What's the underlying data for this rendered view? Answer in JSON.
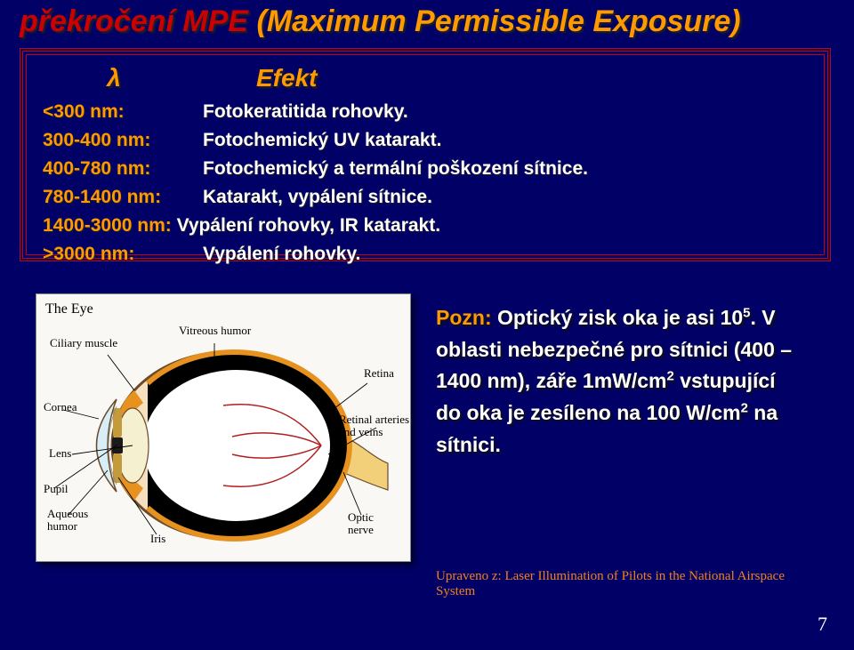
{
  "title": {
    "red_part": "překročení MPE",
    "orange_part": "(Maximum Permissible Exposure)"
  },
  "headers": {
    "lambda": "λ",
    "effect": "Efekt"
  },
  "rows": [
    {
      "wl": "<300 nm:",
      "eff": "Fotokeratitida rohovky."
    },
    {
      "wl": "300-400 nm:",
      "eff": "Fotochemický UV katarakt."
    },
    {
      "wl": "400-780 nm:",
      "eff": "Fotochemický a termální poškození sítnice."
    },
    {
      "wl": "780-1400 nm:",
      "eff": "Katarakt, vypálení sítnice."
    },
    {
      "wl": "1400-3000 nm:",
      "eff": "Vypálení rohovky, IR katarakt.",
      "merged": true
    },
    {
      "wl": ">3000 nm:",
      "eff": "Vypálení rohovky."
    }
  ],
  "eye": {
    "title": "The Eye",
    "labels": {
      "vitreous": "Vitreous humor",
      "ciliary": "Ciliary muscle",
      "retina": "Retina",
      "cornea": "Cornea",
      "retinal_av": "Retinal arteries\nand veins",
      "lens": "Lens",
      "pupil": "Pupil",
      "aqueous": "Aqueous\nhumor",
      "iris": "Iris",
      "optic": "Optic\nnerve"
    },
    "colors": {
      "sclera": "#f6e0c0",
      "sclera_stroke": "#6a4a2a",
      "vitreous": "#ffffff",
      "retina": "#e7911f",
      "iris": "#c49a3a",
      "pupil": "#1a1a1a",
      "cornea": "#d8eef7",
      "lens": "#f4f0d0",
      "nerve": "#f2d07a",
      "vessel": "#b02020"
    }
  },
  "note": {
    "pozn_label": "Pozn:",
    "line1a": "Optický zisk oka je asi 10",
    "line1_exp": "5",
    "line1b": ". V",
    "line2": "oblasti nebezpečné pro sítnici (400 –",
    "line3a": "1400 nm), záře 1mW/cm",
    "line3_exp": "2",
    "line3b": " vstupující",
    "line4a": "do oka je zesíleno na 100 W/cm",
    "line4_exp": "2",
    "line4b": "  na",
    "line5": "sítnici."
  },
  "credit": "Upraveno z: Laser Illumination of Pilots in the National Airspace System",
  "page_number": "7"
}
